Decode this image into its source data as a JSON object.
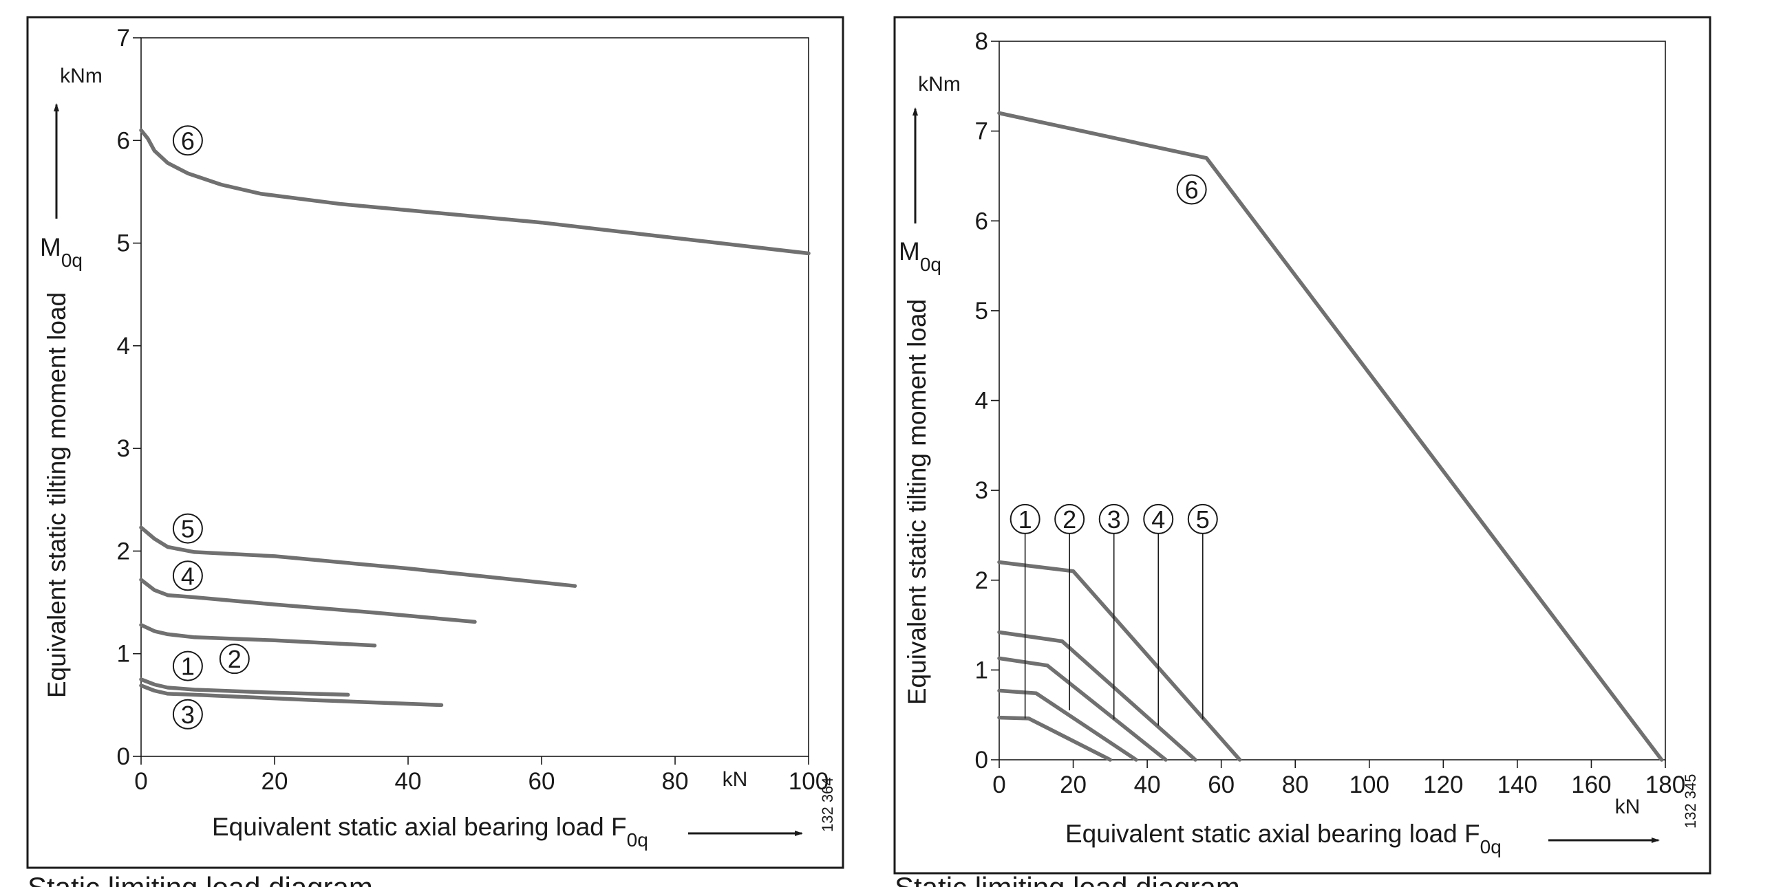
{
  "chart_data": [
    {
      "type": "line",
      "ylabel": "Equivalent static tilting moment load",
      "ysymbol": "M",
      "ysymbol_sub": "0q",
      "yunit": "kNm",
      "xlabel": "Equivalent static axial bearing load F",
      "xlabel_sub": "0q",
      "xunit": "kN",
      "xlim": [
        0,
        100
      ],
      "ylim": [
        0,
        7
      ],
      "xticks": [
        0,
        20,
        40,
        60,
        80,
        100
      ],
      "yticks": [
        0,
        1,
        2,
        3,
        4,
        5,
        6,
        7
      ],
      "code": "132 364",
      "caption": "Static limiting load diagram",
      "series": [
        {
          "name": "6",
          "points": [
            [
              0,
              6.1
            ],
            [
              1,
              6.02
            ],
            [
              2,
              5.9
            ],
            [
              4,
              5.78
            ],
            [
              7,
              5.68
            ],
            [
              12,
              5.57
            ],
            [
              18,
              5.48
            ],
            [
              30,
              5.38
            ],
            [
              40,
              5.32
            ],
            [
              60,
              5.2
            ],
            [
              80,
              5.05
            ],
            [
              100,
              4.9
            ]
          ]
        },
        {
          "name": "5",
          "points": [
            [
              0,
              2.23
            ],
            [
              2,
              2.12
            ],
            [
              4,
              2.04
            ],
            [
              8,
              1.99
            ],
            [
              20,
              1.95
            ],
            [
              40,
              1.83
            ],
            [
              65,
              1.66
            ]
          ]
        },
        {
          "name": "4",
          "points": [
            [
              0,
              1.72
            ],
            [
              2,
              1.62
            ],
            [
              4,
              1.57
            ],
            [
              8,
              1.55
            ],
            [
              20,
              1.48
            ],
            [
              35,
              1.4
            ],
            [
              50,
              1.31
            ]
          ]
        },
        {
          "name": "2",
          "points": [
            [
              0,
              1.28
            ],
            [
              2,
              1.22
            ],
            [
              4,
              1.19
            ],
            [
              8,
              1.16
            ],
            [
              20,
              1.13
            ],
            [
              35,
              1.08
            ]
          ]
        },
        {
          "name": "1",
          "points": [
            [
              0,
              0.75
            ],
            [
              2,
              0.7
            ],
            [
              4,
              0.67
            ],
            [
              8,
              0.65
            ],
            [
              20,
              0.62
            ],
            [
              31,
              0.6
            ]
          ]
        },
        {
          "name": "3",
          "points": [
            [
              0,
              0.69
            ],
            [
              2,
              0.64
            ],
            [
              4,
              0.61
            ],
            [
              8,
              0.6
            ],
            [
              25,
              0.55
            ],
            [
              45,
              0.5
            ]
          ]
        }
      ],
      "labels": [
        {
          "text": "6",
          "x": 7,
          "y": 6.0
        },
        {
          "text": "5",
          "x": 7,
          "y": 2.22
        },
        {
          "text": "4",
          "x": 7,
          "y": 1.76
        },
        {
          "text": "1",
          "x": 7,
          "y": 0.88
        },
        {
          "text": "2",
          "x": 14,
          "y": 0.95
        },
        {
          "text": "3",
          "x": 7,
          "y": 0.41
        }
      ]
    },
    {
      "type": "line",
      "ylabel": "Equivalent static tilting moment load",
      "ysymbol": "M",
      "ysymbol_sub": "0q",
      "yunit": "kNm",
      "xlabel": "Equivalent static axial bearing load  F",
      "xlabel_sub": "0q",
      "xunit": "kN",
      "xlim": [
        0,
        180
      ],
      "ylim": [
        0,
        8
      ],
      "xticks": [
        0,
        20,
        40,
        60,
        80,
        100,
        120,
        140,
        160,
        180
      ],
      "yticks": [
        0,
        1,
        2,
        3,
        4,
        5,
        6,
        7,
        8
      ],
      "code": "132 345",
      "caption": "Static limiting load diagram",
      "series": [
        {
          "name": "6",
          "points": [
            [
              0,
              7.2
            ],
            [
              56,
              6.7
            ],
            [
              179,
              0
            ]
          ]
        },
        {
          "name": "5",
          "points": [
            [
              0,
              2.2
            ],
            [
              20,
              2.1
            ],
            [
              65,
              0
            ]
          ]
        },
        {
          "name": "4",
          "points": [
            [
              0,
              1.42
            ],
            [
              17,
              1.32
            ],
            [
              53,
              0
            ]
          ]
        },
        {
          "name": "3",
          "points": [
            [
              0,
              1.13
            ],
            [
              13,
              1.05
            ],
            [
              45,
              0
            ]
          ]
        },
        {
          "name": "2",
          "points": [
            [
              0,
              0.77
            ],
            [
              10,
              0.74
            ],
            [
              37,
              0
            ]
          ]
        },
        {
          "name": "1",
          "points": [
            [
              0,
              0.47
            ],
            [
              8,
              0.46
            ],
            [
              30,
              0
            ]
          ]
        }
      ],
      "labels": [
        {
          "text": "6",
          "x": 52,
          "y": 6.35
        },
        {
          "text": "1",
          "x": 7,
          "y": 2.68,
          "leader_to": [
            7,
            0.46
          ]
        },
        {
          "text": "2",
          "x": 19,
          "y": 2.68,
          "leader_to": [
            19,
            0.55
          ]
        },
        {
          "text": "3",
          "x": 31,
          "y": 2.68,
          "leader_to": [
            31,
            0.45
          ]
        },
        {
          "text": "4",
          "x": 43,
          "y": 2.68,
          "leader_to": [
            43,
            0.38
          ]
        },
        {
          "text": "5",
          "x": 55,
          "y": 2.68,
          "leader_to": [
            55,
            0.45
          ]
        }
      ]
    }
  ]
}
